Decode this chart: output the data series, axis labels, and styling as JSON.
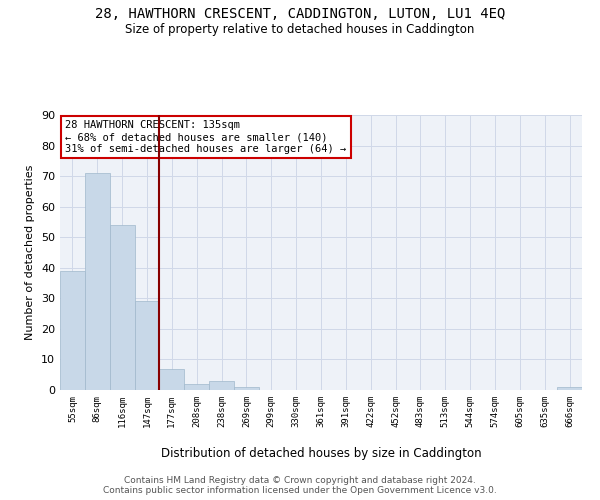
{
  "title": "28, HAWTHORN CRESCENT, CADDINGTON, LUTON, LU1 4EQ",
  "subtitle": "Size of property relative to detached houses in Caddington",
  "xlabel": "Distribution of detached houses by size in Caddington",
  "ylabel": "Number of detached properties",
  "bar_color": "#c8d8e8",
  "bar_edge_color": "#a0b8cc",
  "vline_color": "#880000",
  "vline_x_idx": 3.5,
  "annotation_text": "28 HAWTHORN CRESCENT: 135sqm\n← 68% of detached houses are smaller (140)\n31% of semi-detached houses are larger (64) →",
  "annotation_box_color": "#cc0000",
  "categories": [
    "55sqm",
    "86sqm",
    "116sqm",
    "147sqm",
    "177sqm",
    "208sqm",
    "238sqm",
    "269sqm",
    "299sqm",
    "330sqm",
    "361sqm",
    "391sqm",
    "422sqm",
    "452sqm",
    "483sqm",
    "513sqm",
    "544sqm",
    "574sqm",
    "605sqm",
    "635sqm",
    "666sqm"
  ],
  "values": [
    39,
    71,
    54,
    29,
    7,
    2,
    3,
    1,
    0,
    0,
    0,
    0,
    0,
    0,
    0,
    0,
    0,
    0,
    0,
    0,
    1
  ],
  "ylim": [
    0,
    90
  ],
  "yticks": [
    0,
    10,
    20,
    30,
    40,
    50,
    60,
    70,
    80,
    90
  ],
  "grid_color": "#d0d8e8",
  "background_color": "#eef2f8",
  "footer_line1": "Contains HM Land Registry data © Crown copyright and database right 2024.",
  "footer_line2": "Contains public sector information licensed under the Open Government Licence v3.0."
}
